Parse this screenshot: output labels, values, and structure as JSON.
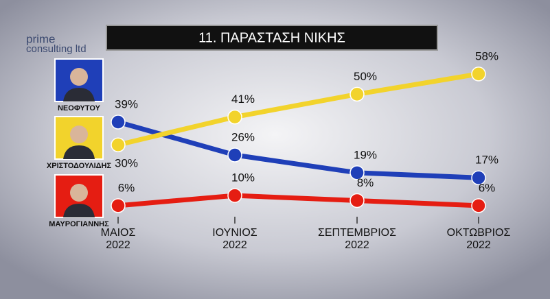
{
  "chart_data": {
    "type": "line",
    "title": "11. ΠΑΡΑΣΤΑΣΗ ΝΙΚΗΣ",
    "logo": [
      "prime",
      "consulting ltd"
    ],
    "categories": [
      "ΜΑΙΟΣ 2022",
      "ΙΟΥΝΙΟΣ 2022",
      "ΣΕΠΤΕΜΒΡΙΟΣ 2022",
      "ΟΚΤΩΒΡΙΟΣ 2022"
    ],
    "ylim": [
      0,
      65
    ],
    "series": [
      {
        "name": "ΝΕΟΦΥΤΟΥ",
        "color": "#1f3fb8",
        "values": [
          39,
          26,
          19,
          17
        ],
        "value_labels": [
          "39%",
          "26%",
          "19%",
          "17%"
        ]
      },
      {
        "name": "ΧΡΙΣΤΟΔΟΥΛΙΔΗΣ",
        "color": "#f2d32c",
        "values": [
          30,
          41,
          50,
          58
        ],
        "value_labels": [
          "30%",
          "41%",
          "50%",
          "58%"
        ]
      },
      {
        "name": "ΜΑΥΡΟΓΙΑΝΝΗΣ",
        "color": "#e51d12",
        "values": [
          6,
          10,
          8,
          6
        ],
        "value_labels": [
          "6%",
          "10%",
          "8%",
          "6%"
        ]
      }
    ]
  }
}
